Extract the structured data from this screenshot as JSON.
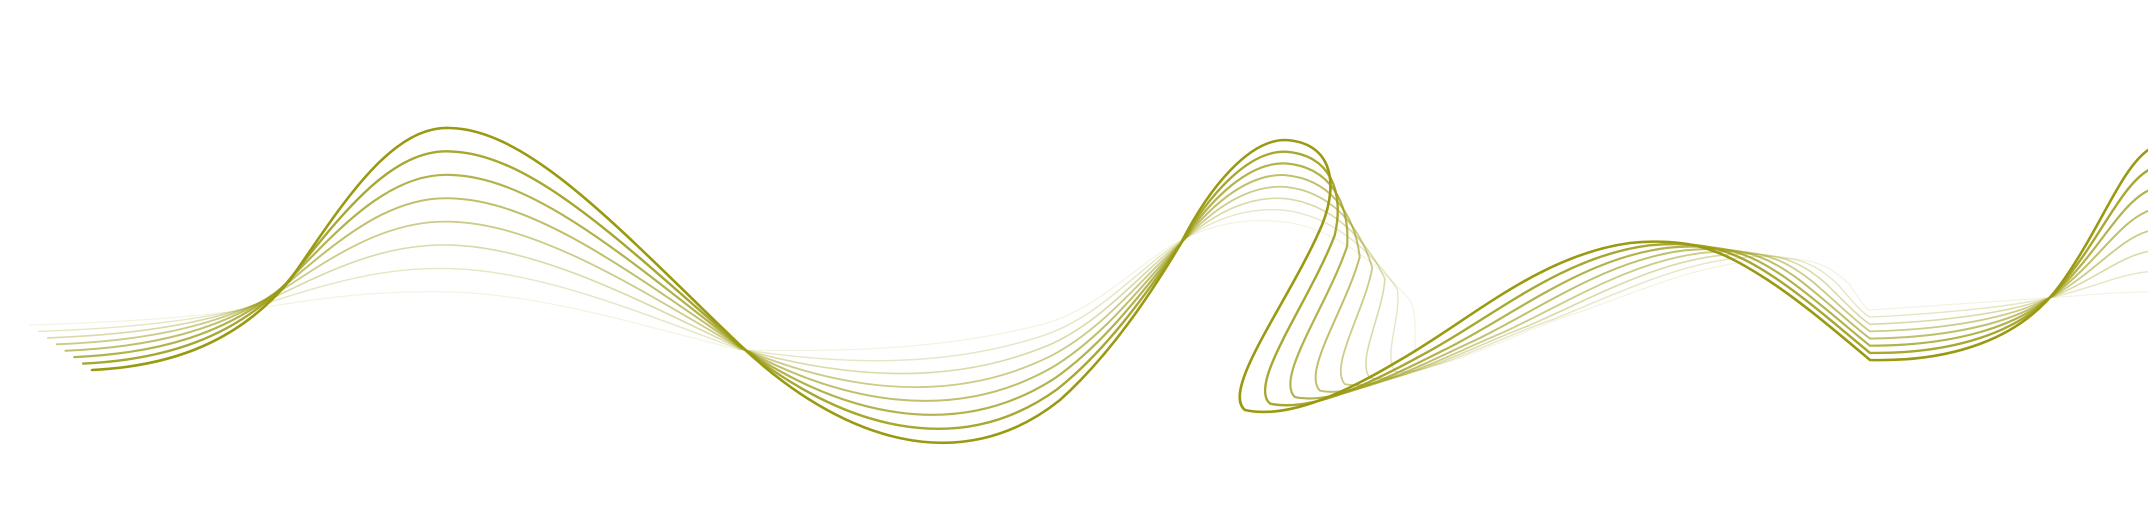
{
  "graphic": {
    "type": "decorative-wave-lines",
    "line_count": 8,
    "line_color": "#9a9a12",
    "background_color": "#ffffff",
    "opacity_range": [
      0.12,
      1.0
    ]
  }
}
